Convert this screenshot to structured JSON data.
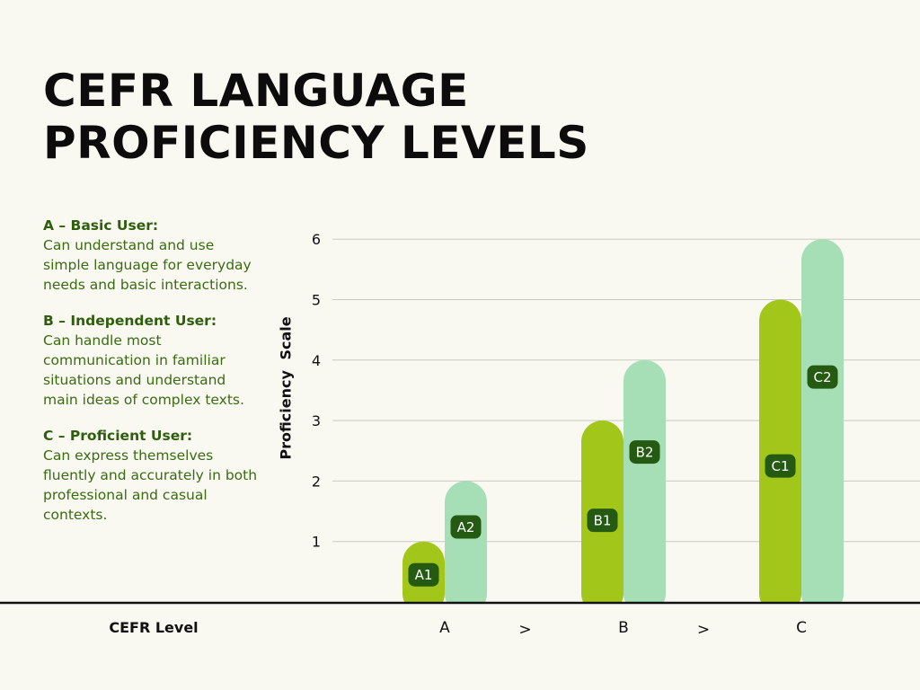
{
  "title_lines": [
    "CEFR LANGUAGE",
    "PROFICIENCY LEVELS"
  ],
  "descriptions": [
    {
      "head": "A – Basic User:",
      "body": "Can understand and use simple language for everyday needs and basic interactions."
    },
    {
      "head": "B – Independent User:",
      "body": "Can handle most communication in familiar situations and understand main ideas of complex texts."
    },
    {
      "head": "C – Proficient User:",
      "body": "Can express themselves fluently and accurately in both professional and casual contexts."
    }
  ],
  "colors": {
    "series_1": "#a3c61a",
    "series_2": "#a6dfb6",
    "label_bg": "#255a12",
    "gridline": "#c9c9c1",
    "axis": "#111111"
  },
  "chart_data": {
    "type": "bar",
    "title": "CEFR LANGUAGE PROFICIENCY LEVELS",
    "xlabel": "CEFR Level",
    "ylabel": "Proficiency  Scale",
    "categories": [
      "A",
      "B",
      "C"
    ],
    "category_separator": ">",
    "series": [
      {
        "values": [
          1,
          3,
          5
        ],
        "labels": [
          "A1",
          "B1",
          "C1"
        ]
      },
      {
        "values": [
          2,
          4,
          6
        ],
        "labels": [
          "A2",
          "B2",
          "C2"
        ]
      }
    ],
    "yticks": [
      1,
      2,
      3,
      4,
      5,
      6
    ],
    "ylim": [
      0,
      6
    ],
    "grid": true,
    "legend": "none"
  }
}
